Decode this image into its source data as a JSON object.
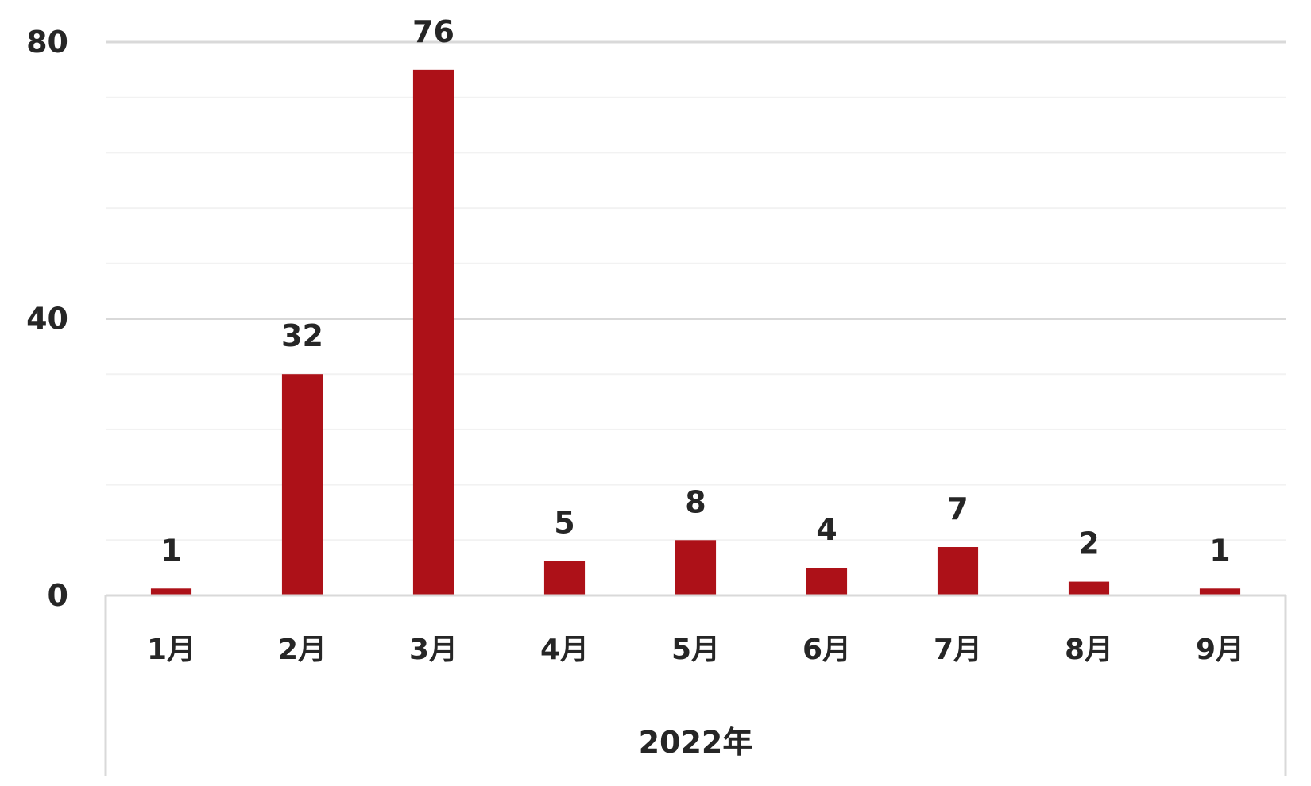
{
  "chart_data": {
    "type": "bar",
    "categories": [
      "1月",
      "2月",
      "3月",
      "4月",
      "5月",
      "6月",
      "7月",
      "8月",
      "9月"
    ],
    "values": [
      1,
      32,
      76,
      5,
      8,
      4,
      7,
      2,
      1
    ],
    "group_label": "2022年",
    "ylim": [
      0,
      80
    ],
    "yticks": [
      0,
      40,
      80
    ],
    "minor_grid_step": 8,
    "grid": true,
    "legend": "none",
    "colors": {
      "bar": "#AD1118",
      "major_grid": "#D9D9D9",
      "minor_grid": "#F2F2F2",
      "text": "#262626"
    }
  }
}
